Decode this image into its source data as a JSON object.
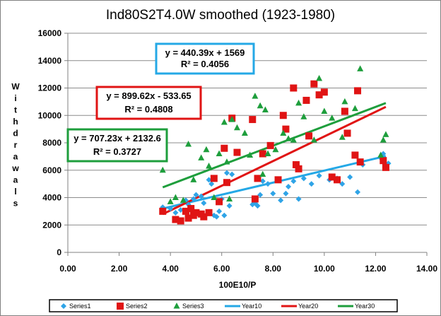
{
  "chart_data": {
    "type": "scatter",
    "title": "Ind80S2T4.0W smoothed (1923-1980)",
    "xlabel": "100E10/P",
    "ylabel": "Withdrawals",
    "xlim": [
      0,
      14
    ],
    "ylim": [
      0,
      16000
    ],
    "x_ticks": [
      "0.00",
      "2.00",
      "4.00",
      "6.00",
      "8.00",
      "10.00",
      "12.00",
      "14.00"
    ],
    "y_ticks": [
      "0",
      "2000",
      "4000",
      "6000",
      "8000",
      "10000",
      "12000",
      "14000",
      "16000"
    ],
    "grid": "horizontal",
    "legend_placement": "bottom",
    "series": [
      {
        "name": "Series1",
        "marker": "diamond",
        "color": "#2fa4e7",
        "points": [
          [
            3.7,
            3300
          ],
          [
            4.0,
            3200
          ],
          [
            4.2,
            2900
          ],
          [
            4.4,
            3100
          ],
          [
            4.6,
            3800
          ],
          [
            4.7,
            3500
          ],
          [
            4.9,
            3900
          ],
          [
            5.0,
            4200
          ],
          [
            5.2,
            4100
          ],
          [
            5.3,
            3600
          ],
          [
            5.5,
            5300
          ],
          [
            5.6,
            5000
          ],
          [
            5.7,
            2700
          ],
          [
            5.8,
            2600
          ],
          [
            5.9,
            3000
          ],
          [
            6.0,
            3900
          ],
          [
            6.1,
            2700
          ],
          [
            6.2,
            5800
          ],
          [
            6.3,
            3400
          ],
          [
            6.4,
            5700
          ],
          [
            7.2,
            3500
          ],
          [
            7.3,
            3600
          ],
          [
            7.4,
            3400
          ],
          [
            7.5,
            4200
          ],
          [
            7.6,
            5200
          ],
          [
            7.8,
            5000
          ],
          [
            8.0,
            4300
          ],
          [
            8.3,
            3800
          ],
          [
            8.5,
            4300
          ],
          [
            8.6,
            4800
          ],
          [
            8.8,
            5200
          ],
          [
            9.0,
            3900
          ],
          [
            9.2,
            5400
          ],
          [
            9.5,
            5000
          ],
          [
            9.8,
            5600
          ],
          [
            10.2,
            5300
          ],
          [
            10.5,
            5400
          ],
          [
            10.7,
            5000
          ],
          [
            11.0,
            5500
          ],
          [
            11.3,
            4400
          ],
          [
            11.5,
            6400
          ],
          [
            12.2,
            6900
          ],
          [
            12.3,
            7200
          ],
          [
            12.5,
            6500
          ]
        ]
      },
      {
        "name": "Series2",
        "marker": "square",
        "color": "#e01414",
        "points": [
          [
            3.7,
            3000
          ],
          [
            4.2,
            2400
          ],
          [
            4.4,
            2300
          ],
          [
            4.6,
            3000
          ],
          [
            4.7,
            2500
          ],
          [
            4.8,
            3200
          ],
          [
            4.9,
            2700
          ],
          [
            5.0,
            2900
          ],
          [
            5.2,
            2800
          ],
          [
            5.3,
            2600
          ],
          [
            5.5,
            2900
          ],
          [
            5.7,
            5400
          ],
          [
            5.9,
            3700
          ],
          [
            6.1,
            7600
          ],
          [
            6.2,
            5100
          ],
          [
            6.4,
            9800
          ],
          [
            6.6,
            7300
          ],
          [
            7.2,
            9700
          ],
          [
            7.3,
            3900
          ],
          [
            7.4,
            5400
          ],
          [
            7.6,
            7200
          ],
          [
            7.9,
            7800
          ],
          [
            8.2,
            5300
          ],
          [
            8.4,
            10000
          ],
          [
            8.5,
            9000
          ],
          [
            8.8,
            12000
          ],
          [
            8.9,
            6400
          ],
          [
            9.0,
            6100
          ],
          [
            9.3,
            11100
          ],
          [
            9.4,
            8500
          ],
          [
            9.6,
            12300
          ],
          [
            9.8,
            11500
          ],
          [
            10.0,
            11700
          ],
          [
            10.3,
            5500
          ],
          [
            10.5,
            5300
          ],
          [
            10.8,
            10300
          ],
          [
            10.9,
            8700
          ],
          [
            11.2,
            7100
          ],
          [
            11.3,
            11800
          ],
          [
            11.4,
            6600
          ],
          [
            12.3,
            6700
          ],
          [
            12.4,
            6200
          ]
        ]
      },
      {
        "name": "Series3",
        "marker": "triangle",
        "color": "#1e9e3c",
        "points": [
          [
            3.7,
            6000
          ],
          [
            4.0,
            3700
          ],
          [
            4.2,
            4000
          ],
          [
            4.5,
            3800
          ],
          [
            4.7,
            7900
          ],
          [
            4.9,
            5300
          ],
          [
            5.2,
            6900
          ],
          [
            5.4,
            7500
          ],
          [
            5.5,
            6300
          ],
          [
            5.7,
            4000
          ],
          [
            5.9,
            7200
          ],
          [
            6.1,
            9500
          ],
          [
            6.2,
            6600
          ],
          [
            6.3,
            3900
          ],
          [
            6.4,
            9700
          ],
          [
            6.6,
            9100
          ],
          [
            6.9,
            8700
          ],
          [
            7.1,
            7100
          ],
          [
            7.3,
            11400
          ],
          [
            7.5,
            10700
          ],
          [
            7.6,
            5700
          ],
          [
            7.7,
            10400
          ],
          [
            7.8,
            7200
          ],
          [
            8.1,
            7500
          ],
          [
            8.4,
            8700
          ],
          [
            8.6,
            8300
          ],
          [
            8.8,
            8200
          ],
          [
            9.0,
            10900
          ],
          [
            9.2,
            9900
          ],
          [
            9.6,
            8200
          ],
          [
            9.8,
            12700
          ],
          [
            10.0,
            10300
          ],
          [
            10.3,
            9800
          ],
          [
            10.7,
            8400
          ],
          [
            10.8,
            11000
          ],
          [
            11.2,
            10500
          ],
          [
            11.4,
            13400
          ],
          [
            12.2,
            7100
          ],
          [
            12.3,
            8200
          ],
          [
            12.4,
            8600
          ]
        ]
      }
    ],
    "trendlines": [
      {
        "name": "Year10",
        "color": "#24a8e6",
        "slope": 440.39,
        "intercept": 1569,
        "x_range": [
          3.7,
          12.4
        ],
        "equation": "y = 440.39x + 1569",
        "r2": "R² = 0.4056"
      },
      {
        "name": "Year20",
        "color": "#e01414",
        "slope": 899.62,
        "intercept": -533.65,
        "x_range": [
          3.7,
          12.4
        ],
        "equation": "y = 899.62x - 533.65",
        "r2": "R² = 0.4808"
      },
      {
        "name": "Year30",
        "color": "#1e9e3c",
        "slope": 707.23,
        "intercept": 2132.6,
        "x_range": [
          3.7,
          12.4
        ],
        "equation": "y = 707.23x + 2132.6",
        "r2": "R² = 0.3727"
      }
    ],
    "legend": [
      "Series1",
      "Series2",
      "Series3",
      "Year10",
      "Year20",
      "Year30"
    ]
  }
}
